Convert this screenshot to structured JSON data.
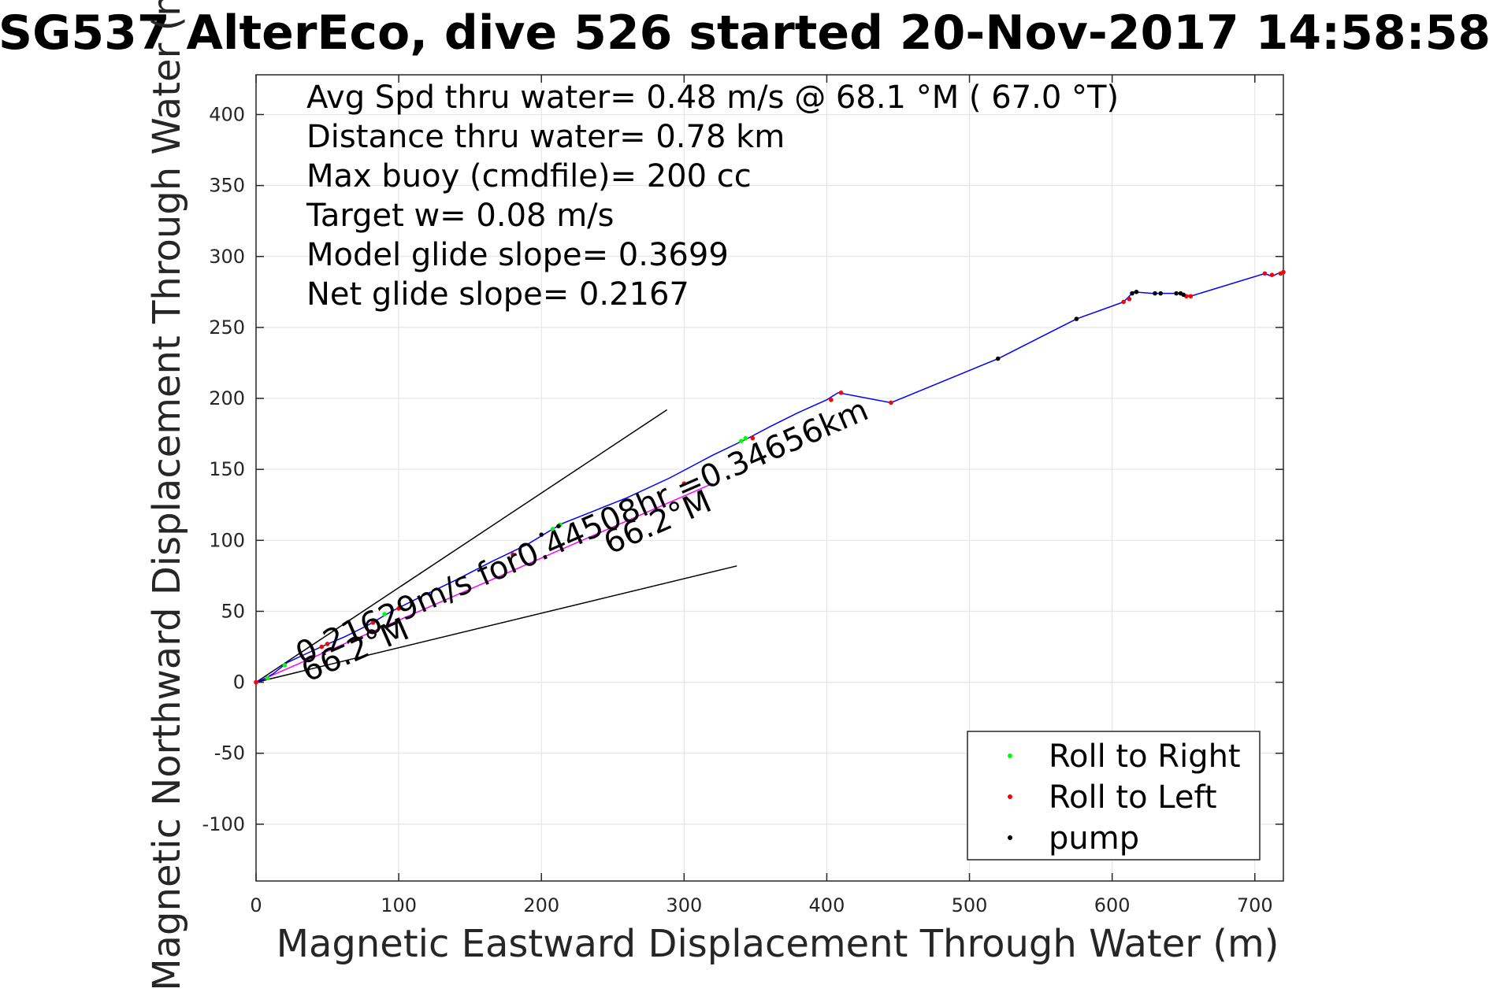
{
  "chart_data": {
    "type": "line",
    "title": "SG537 AlterEco, dive 526 started 20-Nov-2017 14:58:58",
    "xlabel": "Magnetic Eastward Displacement Through Water (m)",
    "ylabel": "Magnetic Northward Displacement Through Water (m)",
    "xlim": [
      0,
      720
    ],
    "ylim": [
      -140,
      428
    ],
    "xticks": [
      0,
      100,
      200,
      300,
      400,
      500,
      600,
      700
    ],
    "yticks": [
      -100,
      -50,
      0,
      50,
      100,
      150,
      200,
      250,
      300,
      350,
      400
    ],
    "grid": true,
    "legend_position": "bottom-right",
    "info_lines": [
      "Avg Spd thru water=  0.48 m/s @  68.1 °M ( 67.0 °T)",
      "Distance thru water=  0.78 km",
      "Max buoy (cmdfile)= 200 cc",
      "Target w= 0.08 m/s",
      "Model glide slope= 0.3699",
      "Net glide slope= 0.2167"
    ],
    "segment_annotation": "0.21629m/s for0.44508hr =0.34656km",
    "heading_annotations": [
      "66.2°M",
      "66.2°M"
    ],
    "track": {
      "color": "#0000ff",
      "x": [
        0,
        5,
        12,
        22,
        35,
        48,
        62,
        78,
        95,
        115,
        140,
        165,
        190,
        208,
        215,
        235,
        260,
        290,
        320,
        345,
        360,
        380,
        400,
        408,
        445,
        520,
        575,
        608,
        615,
        628,
        648,
        655,
        707,
        712,
        716,
        720
      ],
      "y": [
        0,
        2,
        6,
        14,
        20,
        26,
        32,
        40,
        50,
        60,
        72,
        85,
        97,
        108,
        112,
        120,
        130,
        144,
        160,
        172,
        180,
        190,
        199,
        204,
        197,
        228,
        256,
        268,
        275,
        274,
        274,
        272,
        288,
        286,
        288,
        289
      ]
    },
    "model_line": {
      "color": "#ff00ff",
      "x": [
        0,
        320
      ],
      "y": [
        0,
        140
      ]
    },
    "wedge_lines": [
      {
        "color": "#000000",
        "x": [
          0,
          288
        ],
        "y": [
          0,
          192
        ]
      },
      {
        "color": "#000000",
        "x": [
          0,
          337
        ],
        "y": [
          0,
          82
        ]
      }
    ],
    "series": [
      {
        "name": "Roll to Right",
        "color": "#00ff00",
        "x": [
          8,
          20,
          50,
          90,
          208,
          213,
          340,
          343
        ],
        "y": [
          3,
          12,
          27,
          48,
          108,
          111,
          170,
          172
        ]
      },
      {
        "name": "Roll to Left",
        "color": "#ff0000",
        "x": [
          0,
          46,
          50,
          82,
          100,
          180,
          300,
          348,
          403,
          410,
          445,
          608,
          612,
          652,
          655,
          707,
          712,
          718,
          720
        ],
        "y": [
          0,
          25,
          27,
          42,
          52,
          90,
          140,
          172,
          199,
          204,
          197,
          268,
          270,
          272,
          272,
          288,
          287,
          288,
          289
        ],
        "line": true
      },
      {
        "name": "pump",
        "color": "#000000",
        "x": [
          200,
          212,
          520,
          575,
          614,
          617,
          630,
          634,
          645,
          648,
          650
        ],
        "y": [
          104,
          110,
          228,
          256,
          274,
          275,
          274,
          274,
          274,
          274,
          273
        ]
      }
    ]
  }
}
